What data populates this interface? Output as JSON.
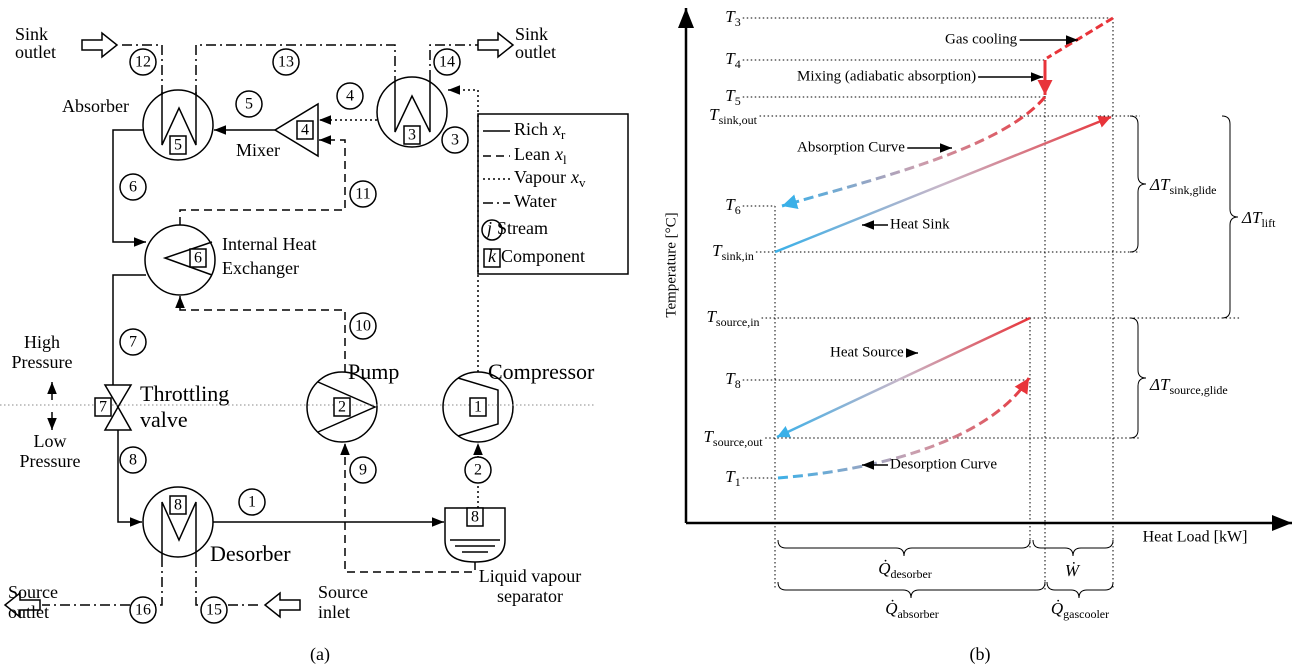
{
  "panel_a": {
    "caption": "(a)",
    "sink_outlet_left": [
      "Sink",
      "outlet"
    ],
    "sink_outlet_right": [
      "Sink",
      "outlet"
    ],
    "absorber": "Absorber",
    "mixer": "Mixer",
    "internal_heat_exchanger": [
      "Internal Heat",
      "Exchanger"
    ],
    "high_pressure": [
      "High",
      "Pressure"
    ],
    "low_pressure": [
      "Low",
      "Pressure"
    ],
    "throttling_valve": [
      "Throttling",
      "valve"
    ],
    "pump": "Pump",
    "compressor": "Compressor",
    "desorber": "Desorber",
    "source_outlet": [
      "Source",
      "outlet"
    ],
    "source_inlet": [
      "Source",
      "inlet"
    ],
    "separator": [
      "Liquid vapour",
      "separator"
    ],
    "streams": [
      "1",
      "2",
      "3",
      "4",
      "5",
      "6",
      "7",
      "8",
      "9",
      "10",
      "11",
      "12",
      "13",
      "14",
      "15",
      "16"
    ],
    "component_boxes": [
      "5",
      "4",
      "3",
      "6",
      "7",
      "2",
      "1",
      "8",
      "8"
    ],
    "legend": [
      {
        "label": "Rich",
        "symbol": "x",
        "subscript": "r"
      },
      {
        "label": "Lean",
        "symbol": "x",
        "subscript": "l"
      },
      {
        "label": "Vapour",
        "symbol": "x",
        "subscript": "v"
      },
      {
        "label": "Water"
      },
      {
        "symbol": "j",
        "label": "Stream"
      },
      {
        "symbol": "k",
        "label": "Component"
      }
    ]
  },
  "panel_b": {
    "caption": "(b)",
    "y_axis_title": "Temperature [°C]",
    "x_axis_title": "Heat Load [kW]",
    "temperature_levels": [
      {
        "symbol": "T",
        "subscript": "3"
      },
      {
        "symbol": "T",
        "subscript": "4"
      },
      {
        "symbol": "T",
        "subscript": "5"
      },
      {
        "symbol": "T",
        "subscript": "sink,out"
      },
      {
        "symbol": "T",
        "subscript": "6"
      },
      {
        "symbol": "T",
        "subscript": "sink,in"
      },
      {
        "symbol": "T",
        "subscript": "source,in"
      },
      {
        "symbol": "T",
        "subscript": "8"
      },
      {
        "symbol": "T",
        "subscript": "source,out"
      },
      {
        "symbol": "T",
        "subscript": "1"
      }
    ],
    "annotations": [
      "Gas cooling",
      "Mixing (adiabatic absorption)",
      "Absorption Curve",
      "Heat Sink",
      "Heat Source",
      "Desorption Curve"
    ],
    "glides": [
      {
        "symbol": "ΔT",
        "subscript": "sink,glide"
      },
      {
        "symbol": "ΔT",
        "subscript": "source,glide"
      },
      {
        "symbol": "ΔT",
        "subscript": "lift"
      }
    ],
    "heat_duties": [
      {
        "symbol": "Q̇",
        "subscript": "desorber"
      },
      {
        "symbol": "Ẇ"
      },
      {
        "symbol": "Q̇",
        "subscript": "absorber"
      },
      {
        "symbol": "Q̇",
        "subscript": "gascooler"
      }
    ]
  }
}
